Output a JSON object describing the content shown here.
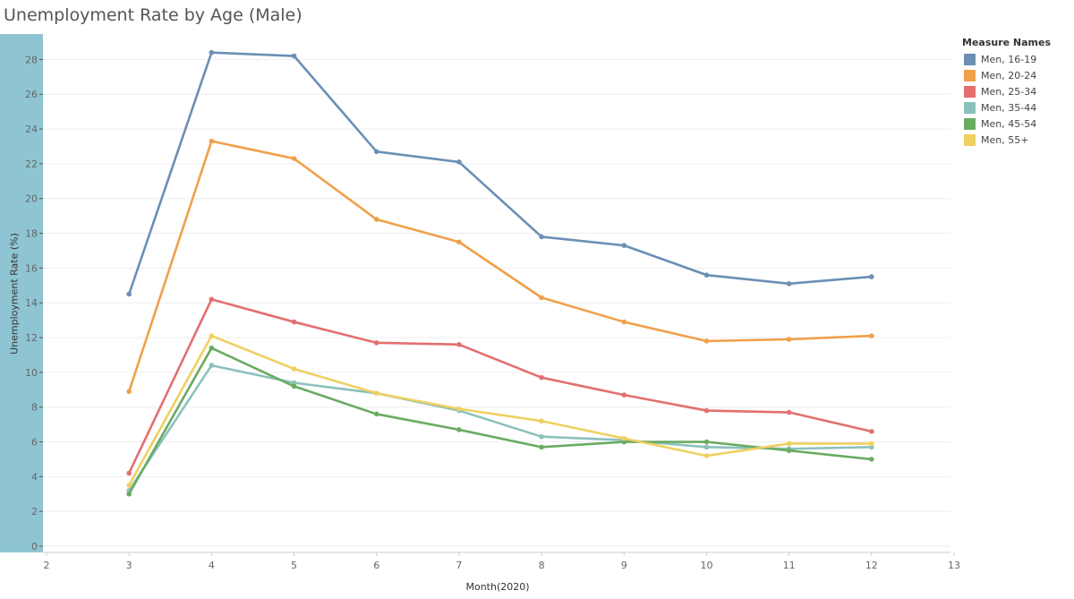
{
  "chart_data": {
    "type": "line",
    "title": "Unemployment Rate by Age (Male)",
    "xlabel": "Month(2020)",
    "ylabel": "Unemployment Rate (%)",
    "x": [
      3,
      4,
      5,
      6,
      7,
      8,
      9,
      10,
      11,
      12
    ],
    "xlim": [
      2,
      13
    ],
    "xticks": [
      "2",
      "3",
      "4",
      "5",
      "6",
      "7",
      "8",
      "9",
      "10",
      "11",
      "12",
      "13"
    ],
    "ylim": [
      0,
      29
    ],
    "yticks": [
      "0",
      "2",
      "4",
      "6",
      "8",
      "10",
      "12",
      "14",
      "16",
      "18",
      "20",
      "22",
      "24",
      "26",
      "28"
    ],
    "grid": "horizontal",
    "legend": {
      "title": "Measure Names",
      "placement": "top-right"
    },
    "series": [
      {
        "name": "Men, 16-19",
        "color": "#6b8fb5",
        "values": [
          14.5,
          28.4,
          28.2,
          22.7,
          22.1,
          17.8,
          17.3,
          15.6,
          15.1,
          15.5
        ]
      },
      {
        "name": "Men, 20-24",
        "color": "#f0a04b",
        "values": [
          8.9,
          23.3,
          22.3,
          18.8,
          17.5,
          14.3,
          12.9,
          11.8,
          11.9,
          12.1
        ]
      },
      {
        "name": "Men, 25-34",
        "color": "#e36f6f",
        "values": [
          4.2,
          14.2,
          12.9,
          11.7,
          11.6,
          9.7,
          8.7,
          7.8,
          7.7,
          6.6
        ]
      },
      {
        "name": "Men, 35-44",
        "color": "#8bc1bc",
        "values": [
          3.2,
          10.4,
          9.4,
          8.8,
          7.8,
          6.3,
          6.1,
          5.7,
          5.6,
          5.7
        ]
      },
      {
        "name": "Men, 45-54",
        "color": "#6aab62",
        "values": [
          3.0,
          11.4,
          9.2,
          7.6,
          6.7,
          5.7,
          6.0,
          6.0,
          5.5,
          5.0
        ]
      },
      {
        "name": "Men, 55+",
        "color": "#efd060",
        "values": [
          3.5,
          12.1,
          10.2,
          8.8,
          7.9,
          7.2,
          6.2,
          5.2,
          5.9,
          5.9
        ]
      }
    ]
  }
}
